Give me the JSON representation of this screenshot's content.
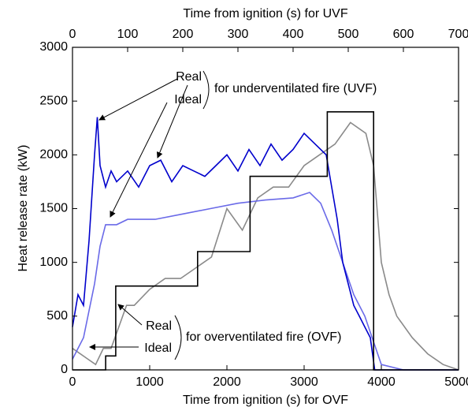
{
  "chart_data": {
    "type": "line",
    "xlabel": "Time from ignition (s) for OVF",
    "x2label": "Time from ignition (s) for UVF",
    "ylabel": "Heat release rate (kW)",
    "xlim": [
      0,
      5000
    ],
    "xticks": [
      0,
      1000,
      2000,
      3000,
      4000,
      5000
    ],
    "x2lim": [
      0,
      700
    ],
    "x2ticks": [
      0,
      100,
      200,
      300,
      400,
      500,
      600,
      700
    ],
    "ylim": [
      0,
      3000
    ],
    "yticks": [
      0,
      500,
      1000,
      1500,
      2000,
      2500,
      3000
    ],
    "series": [
      {
        "color": "#8a8a8a",
        "axis": "x",
        "x": [
          0,
          200,
          300,
          400,
          500,
          600,
          700,
          800,
          1000,
          1200,
          1400,
          1600,
          1800,
          2000,
          2200,
          2400,
          2600,
          2800,
          3000,
          3200,
          3400,
          3600,
          3800,
          3900,
          4000,
          4100,
          4200,
          4400,
          4600,
          4800,
          5000
        ],
        "values": [
          200,
          100,
          50,
          200,
          200,
          400,
          600,
          600,
          750,
          850,
          850,
          950,
          1050,
          1500,
          1300,
          1600,
          1700,
          1700,
          1900,
          2000,
          2100,
          2300,
          2200,
          1900,
          1000,
          700,
          500,
          300,
          150,
          50,
          0
        ]
      },
      {
        "color": "#6a6ae8",
        "axis": "x2",
        "x": [
          0,
          20,
          40,
          50,
          60,
          80,
          100,
          150,
          200,
          250,
          300,
          350,
          400,
          430,
          450,
          470,
          490,
          510,
          530,
          550,
          560,
          600,
          700
        ],
        "values": [
          100,
          300,
          800,
          1150,
          1350,
          1350,
          1400,
          1400,
          1450,
          1500,
          1550,
          1580,
          1600,
          1650,
          1550,
          1300,
          1000,
          700,
          500,
          200,
          50,
          0,
          0
        ]
      },
      {
        "color": "#0000cc",
        "axis": "x2",
        "x": [
          0,
          10,
          20,
          30,
          40,
          45,
          50,
          60,
          70,
          80,
          100,
          120,
          140,
          160,
          180,
          200,
          220,
          240,
          260,
          280,
          300,
          320,
          340,
          360,
          380,
          400,
          420,
          440,
          460,
          470,
          480,
          490,
          500,
          510,
          520,
          530,
          540,
          548,
          560,
          700
        ],
        "values": [
          400,
          700,
          600,
          1200,
          2000,
          2350,
          1900,
          1700,
          1850,
          1750,
          1850,
          1700,
          1900,
          1950,
          1750,
          1900,
          1850,
          1800,
          1900,
          2000,
          1850,
          2050,
          1900,
          2100,
          1950,
          2050,
          2200,
          2100,
          2000,
          1700,
          1400,
          1000,
          800,
          600,
          500,
          400,
          300,
          0,
          0,
          0
        ]
      },
      {
        "color": "#000000",
        "axis": "x",
        "x": [
          0,
          430,
          430,
          560,
          560,
          1620,
          1620,
          2300,
          2300,
          3300,
          3300,
          3900,
          3900,
          5000
        ],
        "values": [
          0,
          0,
          130,
          130,
          780,
          780,
          1100,
          1100,
          1800,
          1800,
          2400,
          2400,
          0,
          0
        ]
      }
    ],
    "annotations": [
      "Real",
      "Ideal",
      "for underventilated fire (UVF)",
      "Real",
      "Ideal",
      "for overventilated fire (OVF)"
    ]
  }
}
